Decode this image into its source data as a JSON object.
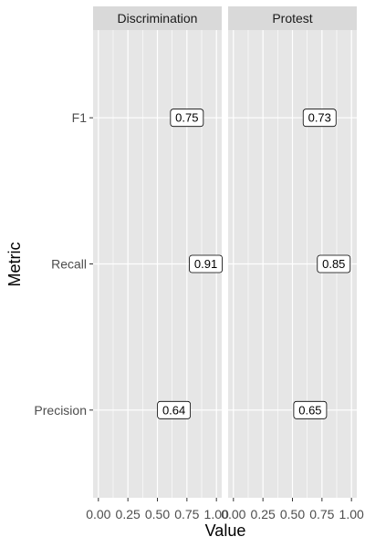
{
  "chart_data": {
    "type": "scatter",
    "facets": [
      "Discrimination",
      "Protest"
    ],
    "categories": [
      "F1",
      "Recall",
      "Precision"
    ],
    "series": [
      {
        "facet": "Discrimination",
        "values": [
          0.75,
          0.91,
          0.64
        ],
        "labels": [
          "0.75",
          "0.91",
          "0.64"
        ]
      },
      {
        "facet": "Protest",
        "values": [
          0.73,
          0.85,
          0.65
        ],
        "labels": [
          "0.73",
          "0.85",
          "0.65"
        ]
      }
    ],
    "xlabel": "Value",
    "ylabel": "Metric",
    "xlim": [
      0,
      1
    ],
    "xticks": [
      0,
      0.25,
      0.5,
      0.75,
      1
    ],
    "xtick_labels": [
      "0.00",
      "0.25",
      "0.50",
      "0.75",
      "1.00"
    ],
    "grid": true,
    "colors": {
      "panel_background": "#e6e6e6",
      "strip_background": "#d9d9d9",
      "grid": "#ffffff",
      "label_fill": "#ffffff",
      "label_border": "#000000"
    }
  }
}
